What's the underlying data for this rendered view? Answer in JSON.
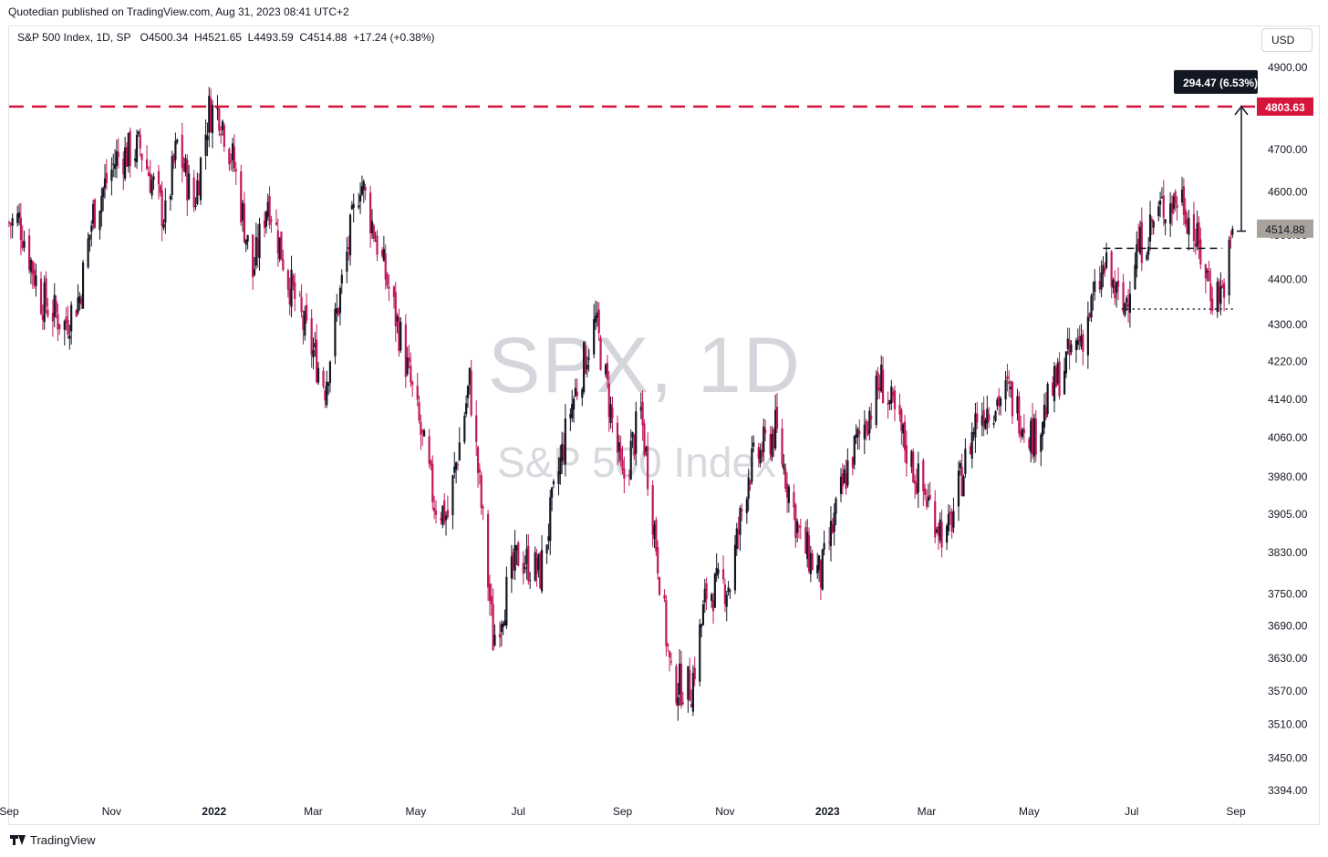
{
  "header": {
    "caption": "Quotedian published on TradingView.com, Aug 31, 2023 08:41 UTC+2"
  },
  "legend": {
    "name": "S&P 500 Index, 1D, SP",
    "open": "O4500.34",
    "high": "H4521.65",
    "low": "L4493.59",
    "close": "C4514.88",
    "change": "+17.24 (+0.38%)"
  },
  "currency_button": "USD",
  "watermark": {
    "symbol": "SPX, 1D",
    "name": "S&P 500 Index"
  },
  "footer": {
    "brand": "TradingView"
  },
  "colors": {
    "up": "#131722",
    "down": "#c2185b",
    "resistance": "#d6143c",
    "price_tag": "#a8a29c",
    "measure_tag": "#131722"
  },
  "chart_data": {
    "type": "candlestick",
    "title": "",
    "y_axis": {
      "scale": "log",
      "range": [
        3370,
        4960
      ],
      "ticks": [
        4900.0,
        4800.0,
        4700.0,
        4600.0,
        4500.0,
        4400.0,
        4300.0,
        4220.0,
        4140.0,
        4060.0,
        3980.0,
        3905.0,
        3830.0,
        3750.0,
        3690.0,
        3630.0,
        3570.0,
        3510.0,
        3450.0,
        3394.0
      ]
    },
    "x_axis": {
      "range": [
        "2021-09-01",
        "2023-09-01"
      ],
      "ticks": [
        {
          "label": "Sep",
          "date": "2021-09-01",
          "bold": false
        },
        {
          "label": "Nov",
          "date": "2021-11-01",
          "bold": false
        },
        {
          "label": "2022",
          "date": "2022-01-01",
          "bold": true
        },
        {
          "label": "Mar",
          "date": "2022-03-01",
          "bold": false
        },
        {
          "label": "May",
          "date": "2022-05-01",
          "bold": false
        },
        {
          "label": "Jul",
          "date": "2022-07-01",
          "bold": false
        },
        {
          "label": "Sep",
          "date": "2022-09-01",
          "bold": false
        },
        {
          "label": "Nov",
          "date": "2022-11-01",
          "bold": false
        },
        {
          "label": "2023",
          "date": "2023-01-01",
          "bold": true
        },
        {
          "label": "Mar",
          "date": "2023-03-01",
          "bold": false
        },
        {
          "label": "May",
          "date": "2023-05-01",
          "bold": false
        },
        {
          "label": "Jul",
          "date": "2023-07-01",
          "bold": false
        },
        {
          "label": "Sep",
          "date": "2023-09-01",
          "bold": false
        }
      ]
    },
    "price_path": [
      [
        "2021-09-01",
        4528
      ],
      [
        "2021-09-07",
        4535
      ],
      [
        "2021-09-20",
        4358
      ],
      [
        "2021-10-04",
        4300
      ],
      [
        "2021-10-13",
        4363
      ],
      [
        "2021-10-21",
        4550
      ],
      [
        "2021-11-04",
        4680
      ],
      [
        "2021-11-18",
        4704
      ],
      [
        "2021-11-30",
        4567
      ],
      [
        "2021-12-03",
        4538
      ],
      [
        "2021-12-10",
        4712
      ],
      [
        "2021-12-20",
        4568
      ],
      [
        "2021-12-29",
        4793
      ],
      [
        "2022-01-04",
        4796
      ],
      [
        "2022-01-13",
        4659
      ],
      [
        "2022-01-24",
        4410
      ],
      [
        "2022-02-02",
        4589
      ],
      [
        "2022-02-14",
        4401
      ],
      [
        "2022-02-24",
        4288
      ],
      [
        "2022-03-08",
        4170
      ],
      [
        "2022-03-29",
        4631
      ],
      [
        "2022-04-14",
        4393
      ],
      [
        "2022-04-22",
        4272
      ],
      [
        "2022-05-12",
        3930
      ],
      [
        "2022-05-20",
        3901
      ],
      [
        "2022-06-02",
        4176
      ],
      [
        "2022-06-16",
        3666
      ],
      [
        "2022-07-01",
        3825
      ],
      [
        "2022-07-14",
        3790
      ],
      [
        "2022-08-01",
        4118
      ],
      [
        "2022-08-16",
        4305
      ],
      [
        "2022-09-01",
        3967
      ],
      [
        "2022-09-12",
        4110
      ],
      [
        "2022-09-30",
        3585
      ],
      [
        "2022-10-12",
        3577
      ],
      [
        "2022-10-21",
        3752
      ],
      [
        "2022-11-04",
        3771
      ],
      [
        "2022-11-15",
        3992
      ],
      [
        "2022-12-01",
        4076
      ],
      [
        "2022-12-16",
        3852
      ],
      [
        "2022-12-28",
        3783
      ],
      [
        "2023-01-13",
        3999
      ],
      [
        "2023-02-02",
        4179
      ],
      [
        "2023-02-24",
        3970
      ],
      [
        "2023-03-13",
        3855
      ],
      [
        "2023-03-31",
        4109
      ],
      [
        "2023-04-18",
        4154
      ],
      [
        "2023-05-04",
        4061
      ],
      [
        "2023-05-19",
        4192
      ],
      [
        "2023-06-02",
        4282
      ],
      [
        "2023-06-15",
        4426
      ],
      [
        "2023-06-26",
        4328
      ],
      [
        "2023-07-03",
        4456
      ],
      [
        "2023-07-19",
        4565
      ],
      [
        "2023-07-31",
        4589
      ],
      [
        "2023-08-18",
        4370
      ],
      [
        "2023-08-24",
        4376
      ],
      [
        "2023-08-31",
        4515
      ]
    ],
    "last_candle": {
      "date": "2023-08-30",
      "open": 4500.34,
      "high": 4521.65,
      "low": 4493.59,
      "close": 4514.88
    },
    "horizontal_line": {
      "value": 4803.63,
      "label": "4803.63",
      "style": "dashed"
    },
    "price_marker": {
      "value": 4514.88,
      "label": "4514.88"
    },
    "measure": {
      "from": 4509.16,
      "to": 4803.63,
      "label": "294.47 (6.53%)",
      "date": "2023-09-01"
    },
    "annotations": [
      {
        "type": "dashed",
        "value": 4470,
        "start": "2023-06-14",
        "end": "2023-08-24"
      },
      {
        "type": "dotted",
        "value": 4334,
        "start": "2023-06-25",
        "end": "2023-09-01"
      }
    ]
  }
}
